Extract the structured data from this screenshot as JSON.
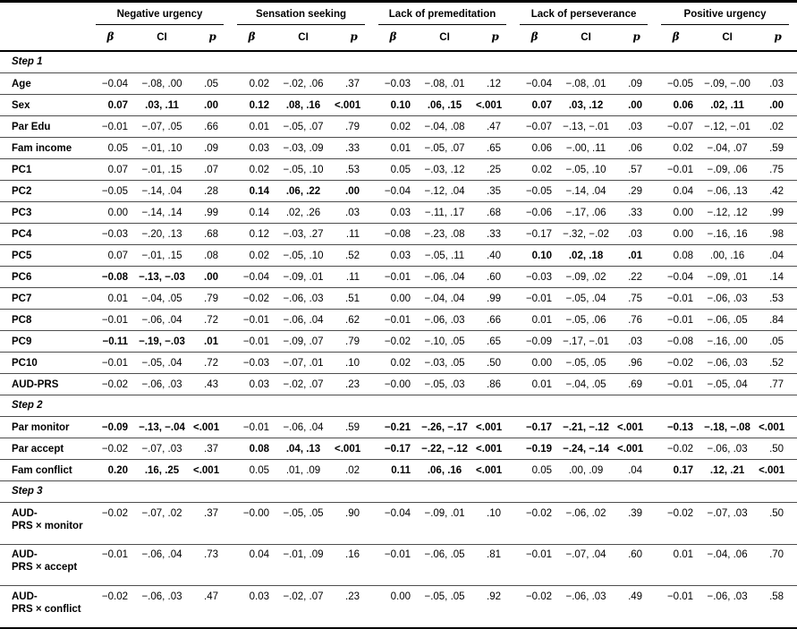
{
  "table": {
    "groups": [
      {
        "label": "Negative urgency"
      },
      {
        "label": "Sensation seeking"
      },
      {
        "label": "Lack of premeditation"
      },
      {
        "label": "Lack of perseverance"
      },
      {
        "label": "Positive urgency"
      }
    ],
    "subheaders": {
      "beta": "β",
      "ci": "CI",
      "p": "p"
    },
    "rows": [
      {
        "type": "section",
        "label": "Step 1"
      },
      {
        "type": "data",
        "label": "Age",
        "cells": [
          {
            "b": "−0.04",
            "ci": "−.08, .00",
            "p": ".05",
            "sig": false
          },
          {
            "b": "0.02",
            "ci": "−.02, .06",
            "p": ".37",
            "sig": false
          },
          {
            "b": "−0.03",
            "ci": "−.08, .01",
            "p": ".12",
            "sig": false
          },
          {
            "b": "−0.04",
            "ci": "−.08, .01",
            "p": ".09",
            "sig": false
          },
          {
            "b": "−0.05",
            "ci": "−.09, −.00",
            "p": ".03",
            "sig": false
          }
        ]
      },
      {
        "type": "data",
        "label": "Sex",
        "cells": [
          {
            "b": "0.07",
            "ci": ".03, .11",
            "p": ".00",
            "sig": true
          },
          {
            "b": "0.12",
            "ci": ".08, .16",
            "p": "<.001",
            "sig": true
          },
          {
            "b": "0.10",
            "ci": ".06, .15",
            "p": "<.001",
            "sig": true
          },
          {
            "b": "0.07",
            "ci": ".03, .12",
            "p": ".00",
            "sig": true
          },
          {
            "b": "0.06",
            "ci": ".02, .11",
            "p": ".00",
            "sig": true
          }
        ]
      },
      {
        "type": "data",
        "label": "Par Edu",
        "cells": [
          {
            "b": "−0.01",
            "ci": "−.07, .05",
            "p": ".66",
            "sig": false
          },
          {
            "b": "0.01",
            "ci": "−.05, .07",
            "p": ".79",
            "sig": false
          },
          {
            "b": "0.02",
            "ci": "−.04, .08",
            "p": ".47",
            "sig": false
          },
          {
            "b": "−0.07",
            "ci": "−.13, −.01",
            "p": ".03",
            "sig": false
          },
          {
            "b": "−0.07",
            "ci": "−.12, −.01",
            "p": ".02",
            "sig": false
          }
        ]
      },
      {
        "type": "data",
        "label": "Fam income",
        "cells": [
          {
            "b": "0.05",
            "ci": "−.01, .10",
            "p": ".09",
            "sig": false
          },
          {
            "b": "0.03",
            "ci": "−.03, .09",
            "p": ".33",
            "sig": false
          },
          {
            "b": "0.01",
            "ci": "−.05, .07",
            "p": ".65",
            "sig": false
          },
          {
            "b": "0.06",
            "ci": "−.00, .11",
            "p": ".06",
            "sig": false
          },
          {
            "b": "0.02",
            "ci": "−.04, .07",
            "p": ".59",
            "sig": false
          }
        ]
      },
      {
        "type": "data",
        "label": "PC1",
        "cells": [
          {
            "b": "0.07",
            "ci": "−.01, .15",
            "p": ".07",
            "sig": false
          },
          {
            "b": "0.02",
            "ci": "−.05, .10",
            "p": ".53",
            "sig": false
          },
          {
            "b": "0.05",
            "ci": "−.03, .12",
            "p": ".25",
            "sig": false
          },
          {
            "b": "0.02",
            "ci": "−.05, .10",
            "p": ".57",
            "sig": false
          },
          {
            "b": "−0.01",
            "ci": "−.09, .06",
            "p": ".75",
            "sig": false
          }
        ]
      },
      {
        "type": "data",
        "label": "PC2",
        "cells": [
          {
            "b": "−0.05",
            "ci": "−.14, .04",
            "p": ".28",
            "sig": false
          },
          {
            "b": "0.14",
            "ci": ".06, .22",
            "p": ".00",
            "sig": true
          },
          {
            "b": "−0.04",
            "ci": "−.12, .04",
            "p": ".35",
            "sig": false
          },
          {
            "b": "−0.05",
            "ci": "−.14, .04",
            "p": ".29",
            "sig": false
          },
          {
            "b": "0.04",
            "ci": "−.06, .13",
            "p": ".42",
            "sig": false
          }
        ]
      },
      {
        "type": "data",
        "label": "PC3",
        "cells": [
          {
            "b": "0.00",
            "ci": "−.14, .14",
            "p": ".99",
            "sig": false
          },
          {
            "b": "0.14",
            "ci": ".02, .26",
            "p": ".03",
            "sig": false
          },
          {
            "b": "0.03",
            "ci": "−.11, .17",
            "p": ".68",
            "sig": false
          },
          {
            "b": "−0.06",
            "ci": "−.17, .06",
            "p": ".33",
            "sig": false
          },
          {
            "b": "0.00",
            "ci": "−.12, .12",
            "p": ".99",
            "sig": false
          }
        ]
      },
      {
        "type": "data",
        "label": "PC4",
        "cells": [
          {
            "b": "−0.03",
            "ci": "−.20, .13",
            "p": ".68",
            "sig": false
          },
          {
            "b": "0.12",
            "ci": "−.03, .27",
            "p": ".11",
            "sig": false
          },
          {
            "b": "−0.08",
            "ci": "−.23, .08",
            "p": ".33",
            "sig": false
          },
          {
            "b": "−0.17",
            "ci": "−.32, −.02",
            "p": ".03",
            "sig": false
          },
          {
            "b": "0.00",
            "ci": "−.16, .16",
            "p": ".98",
            "sig": false
          }
        ]
      },
      {
        "type": "data",
        "label": "PC5",
        "cells": [
          {
            "b": "0.07",
            "ci": "−.01, .15",
            "p": ".08",
            "sig": false
          },
          {
            "b": "0.02",
            "ci": "−.05, .10",
            "p": ".52",
            "sig": false
          },
          {
            "b": "0.03",
            "ci": "−.05, .11",
            "p": ".40",
            "sig": false
          },
          {
            "b": "0.10",
            "ci": ".02, .18",
            "p": ".01",
            "sig": true
          },
          {
            "b": "0.08",
            "ci": ".00, .16",
            "p": ".04",
            "sig": false
          }
        ]
      },
      {
        "type": "data",
        "label": "PC6",
        "cells": [
          {
            "b": "−0.08",
            "ci": "−.13, −.03",
            "p": ".00",
            "sig": true
          },
          {
            "b": "−0.04",
            "ci": "−.09, .01",
            "p": ".11",
            "sig": false
          },
          {
            "b": "−0.01",
            "ci": "−.06, .04",
            "p": ".60",
            "sig": false
          },
          {
            "b": "−0.03",
            "ci": "−.09, .02",
            "p": ".22",
            "sig": false
          },
          {
            "b": "−0.04",
            "ci": "−.09, .01",
            "p": ".14",
            "sig": false
          }
        ]
      },
      {
        "type": "data",
        "label": "PC7",
        "cells": [
          {
            "b": "0.01",
            "ci": "−.04, .05",
            "p": ".79",
            "sig": false
          },
          {
            "b": "−0.02",
            "ci": "−.06, .03",
            "p": ".51",
            "sig": false
          },
          {
            "b": "0.00",
            "ci": "−.04, .04",
            "p": ".99",
            "sig": false
          },
          {
            "b": "−0.01",
            "ci": "−.05, .04",
            "p": ".75",
            "sig": false
          },
          {
            "b": "−0.01",
            "ci": "−.06, .03",
            "p": ".53",
            "sig": false
          }
        ]
      },
      {
        "type": "data",
        "label": "PC8",
        "cells": [
          {
            "b": "−0.01",
            "ci": "−.06, .04",
            "p": ".72",
            "sig": false
          },
          {
            "b": "−0.01",
            "ci": "−.06, .04",
            "p": ".62",
            "sig": false
          },
          {
            "b": "−0.01",
            "ci": "−.06, .03",
            "p": ".66",
            "sig": false
          },
          {
            "b": "0.01",
            "ci": "−.05, .06",
            "p": ".76",
            "sig": false
          },
          {
            "b": "−0.01",
            "ci": "−.06, .05",
            "p": ".84",
            "sig": false
          }
        ]
      },
      {
        "type": "data",
        "label": "PC9",
        "cells": [
          {
            "b": "−0.11",
            "ci": "−.19, −.03",
            "p": ".01",
            "sig": true
          },
          {
            "b": "−0.01",
            "ci": "−.09, .07",
            "p": ".79",
            "sig": false
          },
          {
            "b": "−0.02",
            "ci": "−.10, .05",
            "p": ".65",
            "sig": false
          },
          {
            "b": "−0.09",
            "ci": "−.17, −.01",
            "p": ".03",
            "sig": false
          },
          {
            "b": "−0.08",
            "ci": "−.16, .00",
            "p": ".05",
            "sig": false
          }
        ]
      },
      {
        "type": "data",
        "label": "PC10",
        "cells": [
          {
            "b": "−0.01",
            "ci": "−.05, .04",
            "p": ".72",
            "sig": false
          },
          {
            "b": "−0.03",
            "ci": "−.07, .01",
            "p": ".10",
            "sig": false
          },
          {
            "b": "0.02",
            "ci": "−.03, .05",
            "p": ".50",
            "sig": false
          },
          {
            "b": "0.00",
            "ci": "−.05, .05",
            "p": ".96",
            "sig": false
          },
          {
            "b": "−0.02",
            "ci": "−.06, .03",
            "p": ".52",
            "sig": false
          }
        ]
      },
      {
        "type": "data",
        "label": "AUD-PRS",
        "cells": [
          {
            "b": "−0.02",
            "ci": "−.06, .03",
            "p": ".43",
            "sig": false
          },
          {
            "b": "0.03",
            "ci": "−.02, .07",
            "p": ".23",
            "sig": false
          },
          {
            "b": "−0.00",
            "ci": "−.05, .03",
            "p": ".86",
            "sig": false
          },
          {
            "b": "0.01",
            "ci": "−.04, .05",
            "p": ".69",
            "sig": false
          },
          {
            "b": "−0.01",
            "ci": "−.05, .04",
            "p": ".77",
            "sig": false
          }
        ]
      },
      {
        "type": "section",
        "label": "Step 2"
      },
      {
        "type": "data",
        "label": "Par monitor",
        "cells": [
          {
            "b": "−0.09",
            "ci": "−.13, −.04",
            "p": "<.001",
            "sig": true
          },
          {
            "b": "−0.01",
            "ci": "−.06, .04",
            "p": ".59",
            "sig": false
          },
          {
            "b": "−0.21",
            "ci": "−.26, −.17",
            "p": "<.001",
            "sig": true
          },
          {
            "b": "−0.17",
            "ci": "−.21, −.12",
            "p": "<.001",
            "sig": true
          },
          {
            "b": "−0.13",
            "ci": "−.18, −.08",
            "p": "<.001",
            "sig": true
          }
        ]
      },
      {
        "type": "data",
        "label": "Par accept",
        "cells": [
          {
            "b": "−0.02",
            "ci": "−.07, .03",
            "p": ".37",
            "sig": false
          },
          {
            "b": "0.08",
            "ci": ".04, .13",
            "p": "<.001",
            "sig": true
          },
          {
            "b": "−0.17",
            "ci": "−.22, −.12",
            "p": "<.001",
            "sig": true
          },
          {
            "b": "−0.19",
            "ci": "−.24, −.14",
            "p": "<.001",
            "sig": true
          },
          {
            "b": "−0.02",
            "ci": "−.06, .03",
            "p": ".50",
            "sig": false
          }
        ]
      },
      {
        "type": "data",
        "label": "Fam conflict",
        "cells": [
          {
            "b": "0.20",
            "ci": ".16, .25",
            "p": "<.001",
            "sig": true
          },
          {
            "b": "0.05",
            "ci": ".01, .09",
            "p": ".02",
            "sig": false
          },
          {
            "b": "0.11",
            "ci": ".06, .16",
            "p": "<.001",
            "sig": true
          },
          {
            "b": "0.05",
            "ci": ".00, .09",
            "p": ".04",
            "sig": false
          },
          {
            "b": "0.17",
            "ci": ".12, .21",
            "p": "<.001",
            "sig": true
          }
        ]
      },
      {
        "type": "section",
        "label": "Step 3"
      },
      {
        "type": "data",
        "label": "AUD-PRS × monitor",
        "label_lines": [
          "AUD-",
          "PRS × monitor"
        ],
        "cells": [
          {
            "b": "−0.02",
            "ci": "−.07, .02",
            "p": ".37",
            "sig": false
          },
          {
            "b": "−0.00",
            "ci": "−.05, .05",
            "p": ".90",
            "sig": false
          },
          {
            "b": "−0.04",
            "ci": "−.09, .01",
            "p": ".10",
            "sig": false
          },
          {
            "b": "−0.02",
            "ci": "−.06, .02",
            "p": ".39",
            "sig": false
          },
          {
            "b": "−0.02",
            "ci": "−.07, .03",
            "p": ".50",
            "sig": false
          }
        ]
      },
      {
        "type": "data",
        "label": "AUD-PRS × accept",
        "label_lines": [
          "AUD-",
          "PRS × accept"
        ],
        "cells": [
          {
            "b": "−0.01",
            "ci": "−.06, .04",
            "p": ".73",
            "sig": false
          },
          {
            "b": "0.04",
            "ci": "−.01, .09",
            "p": ".16",
            "sig": false
          },
          {
            "b": "−0.01",
            "ci": "−.06, .05",
            "p": ".81",
            "sig": false
          },
          {
            "b": "−0.01",
            "ci": "−.07, .04",
            "p": ".60",
            "sig": false
          },
          {
            "b": "0.01",
            "ci": "−.04, .06",
            "p": ".70",
            "sig": false
          }
        ]
      },
      {
        "type": "data",
        "label": "AUD-PRS × conflict",
        "label_lines": [
          "AUD-",
          "PRS × conflict"
        ],
        "cells": [
          {
            "b": "−0.02",
            "ci": "−.06, .03",
            "p": ".47",
            "sig": false
          },
          {
            "b": "0.03",
            "ci": "−.02, .07",
            "p": ".23",
            "sig": false
          },
          {
            "b": "0.00",
            "ci": "−.05, .05",
            "p": ".92",
            "sig": false
          },
          {
            "b": "−0.02",
            "ci": "−.06, .03",
            "p": ".49",
            "sig": false
          },
          {
            "b": "−0.01",
            "ci": "−.06, .03",
            "p": ".58",
            "sig": false
          }
        ]
      }
    ]
  }
}
